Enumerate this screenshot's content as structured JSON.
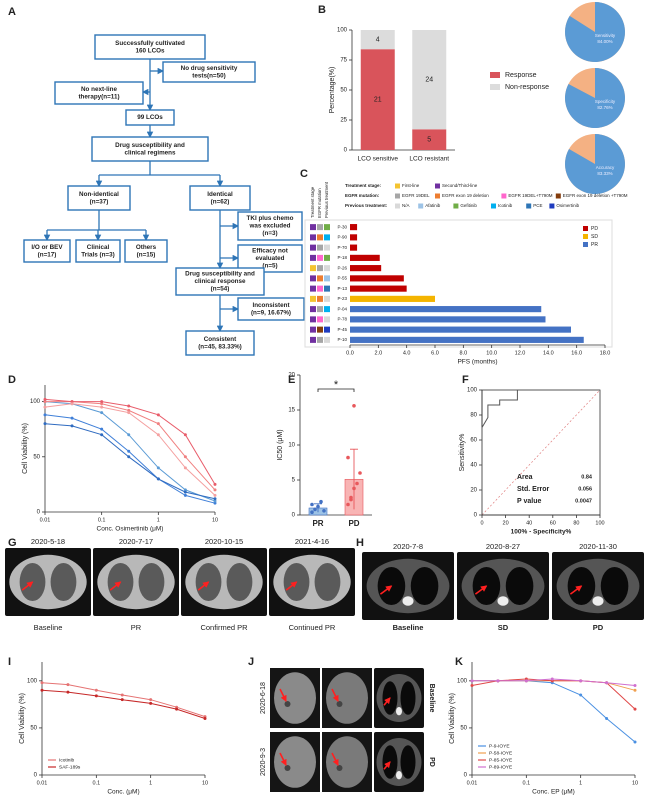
{
  "panels": [
    "A",
    "B",
    "C",
    "D",
    "E",
    "F",
    "G",
    "H",
    "I",
    "J",
    "K"
  ],
  "flowchart": {
    "nodes": [
      {
        "lines": [
          "Successfully cultivated",
          "160 LCOs"
        ]
      },
      {
        "lines": [
          "No drug sensitivity",
          "tests(n=50)"
        ]
      },
      {
        "lines": [
          "No next-line",
          "therapy(n=11)"
        ]
      },
      {
        "lines": [
          "99 LCOs"
        ]
      },
      {
        "lines": [
          "Drug susceptibility and",
          "clinical regimens"
        ]
      },
      {
        "lines": [
          "Non-identical",
          "(n=37)"
        ]
      },
      {
        "lines": [
          "Identical",
          "(n=62)"
        ]
      },
      {
        "lines": [
          "TKI plus chemo",
          "was excluded",
          "(n=3)"
        ]
      },
      {
        "lines": [
          "Efficacy not",
          "evaluated",
          "(n=5)"
        ]
      },
      {
        "lines": [
          "I/O or BEV",
          "(n=17)"
        ]
      },
      {
        "lines": [
          "Clinical",
          "Trials (n=3)"
        ]
      },
      {
        "lines": [
          "Others",
          "(n=15)"
        ]
      },
      {
        "lines": [
          "Drug susceptibility and",
          "clinical response",
          "(n=54)"
        ]
      },
      {
        "lines": [
          "Inconsistent",
          "(n=9, 16.67%)"
        ]
      },
      {
        "lines": [
          "Consistent",
          "(n=45, 83.33%)"
        ]
      }
    ]
  },
  "chart_data": [
    {
      "type": "bar",
      "stacked": true,
      "percent": true,
      "ylabel": "Percentage(%)",
      "categories": [
        "LCO sensitive",
        "LCO resistant"
      ],
      "series": [
        {
          "name": "Response",
          "color": "#d9545b",
          "values": [
            21,
            5
          ]
        },
        {
          "name": "Non-response",
          "color": "#dcdcdc",
          "values": [
            4,
            24
          ]
        }
      ],
      "ylim": [
        0,
        100
      ],
      "yticks": [
        0,
        25,
        50,
        75,
        100
      ]
    },
    {
      "type": "pie",
      "categories": [
        "Sensitivity",
        "Specificity",
        "Accuracy"
      ],
      "values": [
        84,
        82.76,
        83.33
      ],
      "value_labels": [
        "84.00%",
        "82.76%",
        "83.33%"
      ],
      "color": "#5b9bd5",
      "rest_color": "#f4b183"
    },
    {
      "type": "bar",
      "horizontal": true,
      "xlabel": "PFS (months)",
      "columns": [
        "Treatment stage",
        "EGFR mutation",
        "Previous treatment"
      ],
      "key": [
        {
          "title": "Treatment stage:",
          "items": [
            {
              "name": "First-line",
              "color": "#f4c430"
            },
            {
              "name": "Second/Third-line",
              "color": "#7030a0"
            }
          ]
        },
        {
          "title": "EGFR mutation:",
          "items": [
            {
              "name": "EGFR 19DEL",
              "color": "#a6a6a6"
            },
            {
              "name": "EGFR exon 19 deletion",
              "color": "#ed7d31"
            },
            {
              "name": "EGFR 19DEL+T790M",
              "color": "#ff66cc"
            },
            {
              "name": "EGFR exon 19 deletion +T790M",
              "color": "#843c0c"
            }
          ]
        },
        {
          "title": "Previous treatment:",
          "items": [
            {
              "name": "N/A",
              "color": "#d9d9d9"
            },
            {
              "name": "Afatinib",
              "color": "#9dc3e6"
            },
            {
              "name": "Gefitinib",
              "color": "#70ad47"
            },
            {
              "name": "Icotinib",
              "color": "#00b0f0"
            },
            {
              "name": "PCE",
              "color": "#2e75b6"
            },
            {
              "name": "Osimertinib",
              "color": "#1f3cbf"
            }
          ]
        }
      ],
      "categories": [
        "P-30",
        "P-90",
        "P-70",
        "P-18",
        "P-26",
        "P-55",
        "P-13",
        "P-23",
        "P-04",
        "P-78",
        "P-45",
        "P-10"
      ],
      "values": [
        0.5,
        0.5,
        0.5,
        2.1,
        2.2,
        3.8,
        4.0,
        6.0,
        13.5,
        13.8,
        15.6,
        16.5
      ],
      "colors": [
        "#c00000",
        "#c00000",
        "#c00000",
        "#c00000",
        "#c00000",
        "#c00000",
        "#c00000",
        "#f4b400",
        "#4472c4",
        "#4472c4",
        "#4472c4",
        "#4472c4"
      ],
      "row_colors": [
        [
          "#7030a0",
          "#a6a6a6",
          "#70ad47"
        ],
        [
          "#7030a0",
          "#ed7d31",
          "#00b0f0"
        ],
        [
          "#7030a0",
          "#a6a6a6",
          "#d9d9d9"
        ],
        [
          "#7030a0",
          "#ff66cc",
          "#70ad47"
        ],
        [
          "#f4c430",
          "#a6a6a6",
          "#d9d9d9"
        ],
        [
          "#7030a0",
          "#ed7d31",
          "#9dc3e6"
        ],
        [
          "#7030a0",
          "#ff66cc",
          "#2e75b6"
        ],
        [
          "#f4c430",
          "#ed7d31",
          "#d9d9d9"
        ],
        [
          "#7030a0",
          "#a6a6a6",
          "#00b0f0"
        ],
        [
          "#7030a0",
          "#ff66cc",
          "#d9d9d9"
        ],
        [
          "#7030a0",
          "#843c0c",
          "#1f3cbf"
        ],
        [
          "#7030a0",
          "#a6a6a6",
          "#d9d9d9"
        ]
      ],
      "legend": [
        {
          "name": "PD",
          "color": "#c00000"
        },
        {
          "name": "SD",
          "color": "#f4b400"
        },
        {
          "name": "PR",
          "color": "#4472c4"
        }
      ],
      "xlim": [
        0,
        18
      ],
      "xticks": [
        {
          "value": 0,
          "label": "0.0"
        },
        {
          "value": 2,
          "label": "2.0"
        },
        {
          "value": 4,
          "label": "4.0"
        },
        {
          "value": 6,
          "label": "6.0"
        },
        {
          "value": 8,
          "label": "8.0"
        },
        {
          "value": 10,
          "label": "10.0"
        },
        {
          "value": 12,
          "label": "12.0"
        },
        {
          "value": 14,
          "label": "14.0"
        },
        {
          "value": 16,
          "label": "16.0"
        },
        {
          "value": 18,
          "label": "18.0"
        }
      ]
    },
    {
      "type": "line",
      "xlog": true,
      "markers": true,
      "xlabel": "Conc. Osimertinib (μM)",
      "ylabel": "Cell Viability (%)",
      "x": [
        0.01,
        0.03,
        0.1,
        0.3,
        1,
        3,
        10
      ],
      "series": [
        {
          "color": "#3f7fd8",
          "values": [
            88,
            85,
            75,
            55,
            30,
            15,
            8
          ]
        },
        {
          "color": "#5b9bd5",
          "values": [
            100,
            98,
            90,
            70,
            40,
            20,
            10
          ]
        },
        {
          "color": "#2f6bc0",
          "values": [
            80,
            78,
            70,
            50,
            30,
            18,
            12
          ]
        },
        {
          "color": "#f08080",
          "values": [
            100,
            100,
            98,
            92,
            80,
            50,
            20
          ]
        },
        {
          "color": "#e85c6a",
          "values": [
            102,
            100,
            100,
            96,
            88,
            70,
            25
          ]
        },
        {
          "color": "#f4a0a0",
          "values": [
            95,
            98,
            95,
            90,
            70,
            40,
            15
          ]
        }
      ],
      "xlim": [
        0.01,
        10
      ],
      "xticks": [
        0.01,
        0.1,
        1,
        10
      ],
      "ylim": [
        0,
        115
      ],
      "yticks": [
        0,
        50,
        100
      ]
    },
    {
      "type": "bar",
      "ylabel": "IC50 (μM)",
      "categories": [
        "PR",
        "PD"
      ],
      "values": [
        1.0,
        5.1
      ],
      "errors": [
        0.6,
        4.3
      ],
      "colors": [
        "#9dc3e6",
        "#f8b4b4"
      ],
      "point_colors": [
        "#4472c4",
        "#e8585c"
      ],
      "points": [
        [
          0.4,
          0.8,
          1.2,
          1.9,
          0.6,
          1.5
        ],
        [
          1.5,
          2.5,
          3.8,
          4.5,
          6.0,
          8.2,
          2.2,
          15.6
        ]
      ],
      "annotation": "*",
      "ylim": [
        0,
        20
      ],
      "yticks": [
        0,
        5,
        10,
        15,
        20
      ]
    },
    {
      "type": "line",
      "box": true,
      "diagonal": true,
      "xlabel": "100% - Specificity%",
      "ylabel": "Sensitivity%",
      "series": [
        {
          "color": "#555555",
          "x": [
            0,
            0,
            0,
            0,
            5,
            5,
            15,
            15,
            30,
            30,
            100
          ],
          "values": [
            0,
            40,
            60,
            70,
            78,
            88,
            88,
            92,
            92,
            100,
            100
          ]
        }
      ],
      "stats": [
        {
          "label": "Area",
          "value": 0.84
        },
        {
          "label": "Std. Error",
          "value": 0.056
        },
        {
          "label": "P value",
          "value": 0.0047
        }
      ],
      "xlim": [
        0,
        100
      ],
      "xticks": [
        0,
        20,
        40,
        60,
        80,
        100
      ],
      "ylim": [
        0,
        100
      ],
      "yticks": [
        0,
        20,
        40,
        60,
        80,
        100
      ]
    },
    {
      "type": "line",
      "xlog": true,
      "markers": true,
      "legend": "lower left",
      "xlabel": "Conc. (μM)",
      "ylabel": "Cell Viability (%)",
      "x": [
        0.01,
        0.03,
        0.1,
        0.3,
        1,
        3,
        10
      ],
      "series": [
        {
          "name": "Icotinib",
          "color": "#e57373",
          "values": [
            98,
            96,
            90,
            85,
            80,
            72,
            62
          ]
        },
        {
          "name": "SAF-189s",
          "color": "#c62828",
          "values": [
            90,
            88,
            84,
            80,
            76,
            70,
            60
          ]
        }
      ],
      "xlim": [
        0.01,
        10
      ],
      "xticks": [
        0.01,
        0.1,
        1,
        10
      ],
      "ylim": [
        0,
        120
      ],
      "yticks": [
        0,
        50,
        100
      ]
    },
    {
      "type": "line",
      "xlog": true,
      "markers": true,
      "legend": "lower left",
      "xlabel": "Conc. EP (μM)",
      "ylabel": "Cell Viability (%)",
      "x": [
        0.01,
        0.03,
        0.1,
        0.3,
        1,
        3,
        10
      ],
      "series": [
        {
          "name": "P-9-IOYE",
          "color": "#4a90e2",
          "values": [
            100,
            100,
            100,
            98,
            85,
            60,
            35
          ]
        },
        {
          "name": "P-58-IOYE",
          "color": "#f0a050",
          "values": [
            100,
            100,
            100,
            100,
            100,
            98,
            90
          ]
        },
        {
          "name": "P-85-IOYE",
          "color": "#e04848",
          "values": [
            95,
            100,
            102,
            100,
            100,
            98,
            70
          ]
        },
        {
          "name": "P-89-IOYE",
          "color": "#d070d0",
          "values": [
            100,
            100,
            100,
            102,
            100,
            98,
            95
          ]
        }
      ],
      "xlim": [
        0.01,
        10
      ],
      "xticks": [
        0.01,
        0.1,
        1,
        10
      ],
      "ylim": [
        0,
        120
      ],
      "yticks": [
        0,
        50,
        100
      ]
    }
  ],
  "images": {
    "G": {
      "dates": [
        "2020-5-18",
        "2020-7-17",
        "2020-10-15",
        "2021-4-16"
      ],
      "labels": [
        "Baseline",
        "PR",
        "Confirmed PR",
        "Continued PR"
      ]
    },
    "H": {
      "dates": [
        "2020-7-8",
        "2020-8-27",
        "2020-11-30"
      ],
      "labels": [
        "Baseline",
        "SD",
        "PD"
      ]
    },
    "J": {
      "dates": [
        "2020-6-18",
        "2020-9-3"
      ],
      "labels": [
        "Baseline",
        "PD"
      ]
    }
  }
}
